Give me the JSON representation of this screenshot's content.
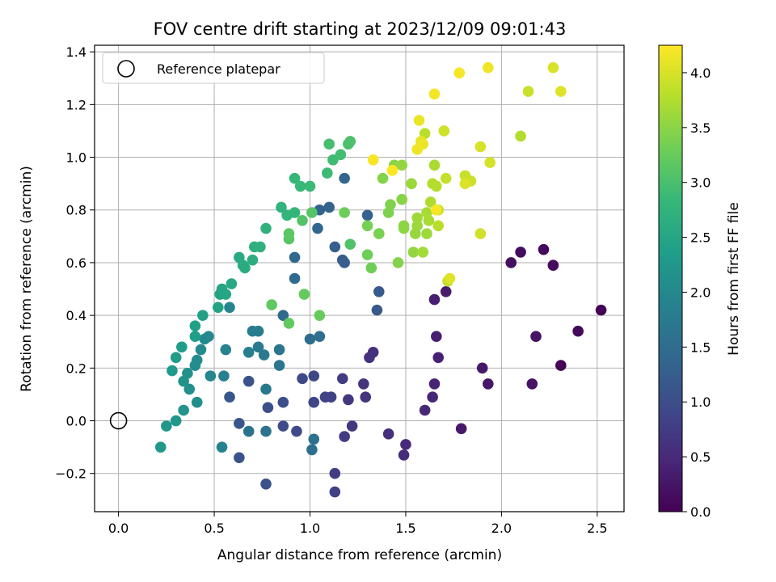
{
  "chart_data": {
    "type": "scatter",
    "title": "FOV centre drift starting at 2023/12/09 09:01:43",
    "xlabel": "Angular distance from reference (arcmin)",
    "ylabel": "Rotation from reference (arcmin)",
    "xlim": [
      -0.125,
      2.64
    ],
    "ylim": [
      -0.345,
      1.425
    ],
    "xticks": [
      0.0,
      0.5,
      1.0,
      1.5,
      2.0,
      2.5
    ],
    "xtick_labels": [
      "0.0",
      "0.5",
      "1.0",
      "1.5",
      "2.0",
      "2.5"
    ],
    "yticks": [
      -0.2,
      0.0,
      0.2,
      0.4,
      0.6,
      0.8,
      1.0,
      1.2,
      1.4
    ],
    "ytick_labels": [
      "−0.2",
      "0.0",
      "0.2",
      "0.4",
      "0.6",
      "0.8",
      "1.0",
      "1.2",
      "1.4"
    ],
    "grid": true,
    "legend": {
      "position": "top-left",
      "entries": [
        "Reference platepar"
      ]
    },
    "reference_point": {
      "x": 0.0,
      "y": 0.0
    },
    "colorbar": {
      "label": "Hours from first FF file",
      "colormap": "viridis",
      "range": [
        0.0,
        4.25
      ],
      "ticks": [
        0.0,
        0.5,
        1.0,
        1.5,
        2.0,
        2.5,
        3.0,
        3.5,
        4.0
      ],
      "tick_labels": [
        "0.0",
        "0.5",
        "1.0",
        "1.5",
        "2.0",
        "2.5",
        "3.0",
        "3.5",
        "4.0"
      ]
    },
    "points": [
      {
        "x": 2.52,
        "y": 0.42,
        "h": 0.02
      },
      {
        "x": 2.31,
        "y": 0.21,
        "h": 0.05
      },
      {
        "x": 2.4,
        "y": 0.34,
        "h": 0.08
      },
      {
        "x": 2.22,
        "y": 0.65,
        "h": 0.1
      },
      {
        "x": 2.27,
        "y": 0.59,
        "h": 0.13
      },
      {
        "x": 2.1,
        "y": 0.64,
        "h": 0.15
      },
      {
        "x": 2.05,
        "y": 0.6,
        "h": 0.18
      },
      {
        "x": 2.18,
        "y": 0.32,
        "h": 0.2
      },
      {
        "x": 2.16,
        "y": 0.14,
        "h": 0.22
      },
      {
        "x": 1.93,
        "y": 0.14,
        "h": 0.25
      },
      {
        "x": 1.9,
        "y": 0.2,
        "h": 0.28
      },
      {
        "x": 1.79,
        "y": -0.03,
        "h": 0.3
      },
      {
        "x": 1.71,
        "y": 0.49,
        "h": 0.33
      },
      {
        "x": 1.65,
        "y": 0.46,
        "h": 0.36
      },
      {
        "x": 1.66,
        "y": 0.32,
        "h": 0.38
      },
      {
        "x": 1.67,
        "y": 0.24,
        "h": 0.4
      },
      {
        "x": 1.65,
        "y": 0.14,
        "h": 0.42
      },
      {
        "x": 1.64,
        "y": 0.09,
        "h": 0.45
      },
      {
        "x": 1.6,
        "y": 0.04,
        "h": 0.48
      },
      {
        "x": 1.5,
        "y": -0.09,
        "h": 0.5
      },
      {
        "x": 1.49,
        "y": -0.13,
        "h": 0.53
      },
      {
        "x": 1.41,
        "y": -0.05,
        "h": 0.55
      },
      {
        "x": 1.33,
        "y": 0.26,
        "h": 0.58
      },
      {
        "x": 1.31,
        "y": 0.24,
        "h": 0.6
      },
      {
        "x": 1.28,
        "y": 0.14,
        "h": 0.63
      },
      {
        "x": 1.29,
        "y": 0.09,
        "h": 0.65
      },
      {
        "x": 1.2,
        "y": 0.08,
        "h": 0.68
      },
      {
        "x": 1.22,
        "y": -0.02,
        "h": 0.7
      },
      {
        "x": 1.18,
        "y": -0.06,
        "h": 0.73
      },
      {
        "x": 1.17,
        "y": 0.16,
        "h": 0.75
      },
      {
        "x": 1.13,
        "y": -0.2,
        "h": 0.78
      },
      {
        "x": 1.13,
        "y": -0.27,
        "h": 0.8
      },
      {
        "x": 1.11,
        "y": 0.09,
        "h": 0.82
      },
      {
        "x": 1.08,
        "y": 0.09,
        "h": 0.85
      },
      {
        "x": 1.02,
        "y": 0.07,
        "h": 0.88
      },
      {
        "x": 1.02,
        "y": 0.17,
        "h": 0.9
      },
      {
        "x": 0.96,
        "y": 0.16,
        "h": 0.93
      },
      {
        "x": 0.93,
        "y": -0.04,
        "h": 0.95
      },
      {
        "x": 0.86,
        "y": -0.02,
        "h": 0.98
      },
      {
        "x": 0.86,
        "y": 0.07,
        "h": 1.0
      },
      {
        "x": 0.78,
        "y": 0.05,
        "h": 1.03
      },
      {
        "x": 0.77,
        "y": -0.24,
        "h": 1.05
      },
      {
        "x": 0.68,
        "y": 0.15,
        "h": 1.08
      },
      {
        "x": 0.63,
        "y": -0.14,
        "h": 1.1
      },
      {
        "x": 0.63,
        "y": -0.01,
        "h": 1.12
      },
      {
        "x": 0.58,
        "y": 0.09,
        "h": 1.15
      },
      {
        "x": 1.35,
        "y": 0.42,
        "h": 1.18
      },
      {
        "x": 1.36,
        "y": 0.49,
        "h": 1.2
      },
      {
        "x": 1.17,
        "y": 0.61,
        "h": 1.23
      },
      {
        "x": 1.18,
        "y": 0.6,
        "h": 1.25
      },
      {
        "x": 1.13,
        "y": 0.66,
        "h": 1.28
      },
      {
        "x": 1.3,
        "y": 0.78,
        "h": 1.3
      },
      {
        "x": 1.05,
        "y": 0.8,
        "h": 1.33
      },
      {
        "x": 1.1,
        "y": 0.81,
        "h": 1.35
      },
      {
        "x": 1.18,
        "y": 0.92,
        "h": 1.38
      },
      {
        "x": 1.04,
        "y": 0.73,
        "h": 1.4
      },
      {
        "x": 0.92,
        "y": 0.62,
        "h": 1.42
      },
      {
        "x": 0.92,
        "y": 0.54,
        "h": 1.45
      },
      {
        "x": 0.86,
        "y": 0.4,
        "h": 1.48
      },
      {
        "x": 1.0,
        "y": 0.31,
        "h": 1.5
      },
      {
        "x": 1.05,
        "y": 0.32,
        "h": 1.53
      },
      {
        "x": 1.01,
        "y": -0.11,
        "h": 1.55
      },
      {
        "x": 1.02,
        "y": -0.07,
        "h": 1.58
      },
      {
        "x": 0.77,
        "y": -0.04,
        "h": 1.6
      },
      {
        "x": 0.68,
        "y": -0.04,
        "h": 1.62
      },
      {
        "x": 0.84,
        "y": 0.21,
        "h": 1.65
      },
      {
        "x": 0.84,
        "y": 0.27,
        "h": 1.68
      },
      {
        "x": 0.77,
        "y": 0.12,
        "h": 1.7
      },
      {
        "x": 0.76,
        "y": 0.25,
        "h": 1.73
      },
      {
        "x": 0.73,
        "y": 0.28,
        "h": 1.75
      },
      {
        "x": 0.73,
        "y": 0.34,
        "h": 1.78
      },
      {
        "x": 0.7,
        "y": 0.34,
        "h": 1.8
      },
      {
        "x": 0.68,
        "y": 0.26,
        "h": 1.82
      },
      {
        "x": 0.55,
        "y": 0.17,
        "h": 1.85
      },
      {
        "x": 0.54,
        "y": -0.1,
        "h": 1.88
      },
      {
        "x": 0.56,
        "y": 0.27,
        "h": 1.9
      },
      {
        "x": 0.58,
        "y": 0.43,
        "h": 1.93
      },
      {
        "x": 0.48,
        "y": 0.17,
        "h": 1.95
      },
      {
        "x": 0.47,
        "y": 0.32,
        "h": 1.98
      },
      {
        "x": 0.45,
        "y": 0.31,
        "h": 2.0
      },
      {
        "x": 0.43,
        "y": 0.27,
        "h": 2.02
      },
      {
        "x": 0.41,
        "y": 0.23,
        "h": 2.05
      },
      {
        "x": 0.4,
        "y": 0.21,
        "h": 2.08
      },
      {
        "x": 0.41,
        "y": 0.07,
        "h": 2.1
      },
      {
        "x": 0.37,
        "y": 0.12,
        "h": 2.12
      },
      {
        "x": 0.36,
        "y": 0.18,
        "h": 2.15
      },
      {
        "x": 0.34,
        "y": 0.15,
        "h": 2.18
      },
      {
        "x": 0.34,
        "y": 0.04,
        "h": 2.2
      },
      {
        "x": 0.3,
        "y": 0.0,
        "h": 2.22
      },
      {
        "x": 0.25,
        "y": -0.02,
        "h": 2.25
      },
      {
        "x": 0.22,
        "y": -0.1,
        "h": 2.28
      },
      {
        "x": 0.28,
        "y": 0.19,
        "h": 2.3
      },
      {
        "x": 0.3,
        "y": 0.24,
        "h": 2.32
      },
      {
        "x": 0.33,
        "y": 0.28,
        "h": 2.35
      },
      {
        "x": 0.4,
        "y": 0.32,
        "h": 2.38
      },
      {
        "x": 0.4,
        "y": 0.36,
        "h": 2.4
      },
      {
        "x": 0.44,
        "y": 0.4,
        "h": 2.42
      },
      {
        "x": 0.52,
        "y": 0.43,
        "h": 2.45
      },
      {
        "x": 0.53,
        "y": 0.48,
        "h": 2.48
      },
      {
        "x": 0.54,
        "y": 0.5,
        "h": 2.5
      },
      {
        "x": 0.56,
        "y": 0.48,
        "h": 2.52
      },
      {
        "x": 0.59,
        "y": 0.52,
        "h": 2.55
      },
      {
        "x": 0.63,
        "y": 0.62,
        "h": 2.58
      },
      {
        "x": 0.65,
        "y": 0.59,
        "h": 2.6
      },
      {
        "x": 0.66,
        "y": 0.58,
        "h": 2.62
      },
      {
        "x": 0.7,
        "y": 0.61,
        "h": 2.65
      },
      {
        "x": 0.71,
        "y": 0.66,
        "h": 2.68
      },
      {
        "x": 0.74,
        "y": 0.66,
        "h": 2.7
      },
      {
        "x": 0.77,
        "y": 0.73,
        "h": 2.72
      },
      {
        "x": 0.85,
        "y": 0.81,
        "h": 2.75
      },
      {
        "x": 0.88,
        "y": 0.78,
        "h": 2.78
      },
      {
        "x": 0.92,
        "y": 0.79,
        "h": 2.8
      },
      {
        "x": 0.92,
        "y": 0.92,
        "h": 2.82
      },
      {
        "x": 0.95,
        "y": 0.89,
        "h": 2.85
      },
      {
        "x": 1.0,
        "y": 0.89,
        "h": 2.88
      },
      {
        "x": 1.09,
        "y": 0.94,
        "h": 2.9
      },
      {
        "x": 1.12,
        "y": 0.99,
        "h": 2.92
      },
      {
        "x": 1.16,
        "y": 1.01,
        "h": 2.95
      },
      {
        "x": 1.1,
        "y": 1.05,
        "h": 2.98
      },
      {
        "x": 1.2,
        "y": 1.05,
        "h": 3.0
      },
      {
        "x": 1.21,
        "y": 1.06,
        "h": 3.02
      },
      {
        "x": 1.21,
        "y": 0.67,
        "h": 3.05
      },
      {
        "x": 0.96,
        "y": 0.76,
        "h": 3.08
      },
      {
        "x": 1.01,
        "y": 0.79,
        "h": 3.1
      },
      {
        "x": 0.89,
        "y": 0.69,
        "h": 3.12
      },
      {
        "x": 0.89,
        "y": 0.71,
        "h": 3.15
      },
      {
        "x": 0.8,
        "y": 0.44,
        "h": 3.18
      },
      {
        "x": 0.89,
        "y": 0.37,
        "h": 3.2
      },
      {
        "x": 0.97,
        "y": 0.48,
        "h": 3.22
      },
      {
        "x": 1.05,
        "y": 0.4,
        "h": 3.25
      },
      {
        "x": 1.18,
        "y": 0.79,
        "h": 3.28
      },
      {
        "x": 1.3,
        "y": 0.63,
        "h": 3.3
      },
      {
        "x": 1.32,
        "y": 0.58,
        "h": 3.32
      },
      {
        "x": 1.3,
        "y": 0.74,
        "h": 3.35
      },
      {
        "x": 1.36,
        "y": 0.71,
        "h": 3.38
      },
      {
        "x": 1.41,
        "y": 0.79,
        "h": 3.4
      },
      {
        "x": 1.42,
        "y": 0.82,
        "h": 3.42
      },
      {
        "x": 1.46,
        "y": 0.6,
        "h": 3.45
      },
      {
        "x": 1.48,
        "y": 0.84,
        "h": 3.48
      },
      {
        "x": 1.49,
        "y": 0.74,
        "h": 3.5
      },
      {
        "x": 1.49,
        "y": 0.73,
        "h": 3.52
      },
      {
        "x": 1.54,
        "y": 0.64,
        "h": 3.55
      },
      {
        "x": 1.55,
        "y": 0.71,
        "h": 3.58
      },
      {
        "x": 1.56,
        "y": 0.74,
        "h": 3.6
      },
      {
        "x": 1.56,
        "y": 0.77,
        "h": 3.62
      },
      {
        "x": 1.59,
        "y": 0.64,
        "h": 3.65
      },
      {
        "x": 1.61,
        "y": 0.79,
        "h": 3.68
      },
      {
        "x": 1.62,
        "y": 0.76,
        "h": 3.7
      },
      {
        "x": 1.63,
        "y": 0.83,
        "h": 3.72
      },
      {
        "x": 1.64,
        "y": 0.9,
        "h": 3.75
      },
      {
        "x": 1.66,
        "y": 0.89,
        "h": 3.78
      },
      {
        "x": 1.67,
        "y": 0.74,
        "h": 3.8
      },
      {
        "x": 1.67,
        "y": 0.8,
        "h": 3.82
      },
      {
        "x": 1.72,
        "y": 0.53,
        "h": 3.85
      },
      {
        "x": 1.71,
        "y": 0.92,
        "h": 3.88
      },
      {
        "x": 1.81,
        "y": 0.93,
        "h": 3.9
      },
      {
        "x": 1.84,
        "y": 0.91,
        "h": 3.92
      },
      {
        "x": 1.89,
        "y": 0.71,
        "h": 3.95
      },
      {
        "x": 1.94,
        "y": 0.98,
        "h": 3.98
      },
      {
        "x": 1.89,
        "y": 1.04,
        "h": 4.0
      },
      {
        "x": 1.81,
        "y": 0.9,
        "h": 4.02
      },
      {
        "x": 1.73,
        "y": 0.54,
        "h": 4.05
      },
      {
        "x": 1.38,
        "y": 0.92,
        "h": 3.45
      },
      {
        "x": 1.44,
        "y": 0.97,
        "h": 3.5
      },
      {
        "x": 1.48,
        "y": 0.97,
        "h": 3.55
      },
      {
        "x": 1.53,
        "y": 0.9,
        "h": 3.6
      },
      {
        "x": 1.61,
        "y": 0.71,
        "h": 3.62
      },
      {
        "x": 1.65,
        "y": 0.97,
        "h": 3.7
      },
      {
        "x": 1.6,
        "y": 1.09,
        "h": 3.8
      },
      {
        "x": 1.7,
        "y": 1.1,
        "h": 3.95
      },
      {
        "x": 2.1,
        "y": 1.08,
        "h": 3.75
      },
      {
        "x": 2.14,
        "y": 1.25,
        "h": 3.9
      },
      {
        "x": 2.27,
        "y": 1.34,
        "h": 4.0
      },
      {
        "x": 2.31,
        "y": 1.25,
        "h": 4.05
      },
      {
        "x": 1.93,
        "y": 1.34,
        "h": 4.15
      },
      {
        "x": 1.78,
        "y": 1.32,
        "h": 4.2
      },
      {
        "x": 1.65,
        "y": 1.24,
        "h": 4.18
      },
      {
        "x": 1.57,
        "y": 1.14,
        "h": 4.12
      },
      {
        "x": 1.58,
        "y": 1.06,
        "h": 4.1
      },
      {
        "x": 1.59,
        "y": 1.05,
        "h": 4.14
      },
      {
        "x": 1.56,
        "y": 1.03,
        "h": 4.16
      },
      {
        "x": 1.33,
        "y": 0.99,
        "h": 4.22
      },
      {
        "x": 1.43,
        "y": 0.95,
        "h": 4.24
      },
      {
        "x": 1.66,
        "y": 0.8,
        "h": 4.21
      }
    ]
  }
}
